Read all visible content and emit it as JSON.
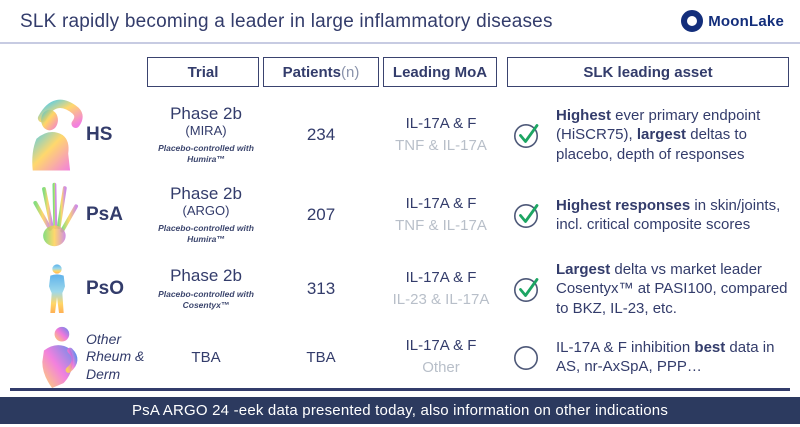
{
  "header": {
    "title": "SLK rapidly becoming a leader in large inflammatory diseases",
    "brand": "MoonLake"
  },
  "columns": {
    "trial": "Trial",
    "patients_rich": [
      {
        "t": "Patients ",
        "b": true
      },
      {
        "t": "(n)",
        "c": "muted-n"
      }
    ],
    "moa": "Leading MoA",
    "asset": "SLK leading asset"
  },
  "table": {
    "rows": [
      {
        "icon": "person-stretching-icon",
        "label": "HS",
        "trial_phase": "Phase 2b",
        "trial_name": "(MIRA)",
        "trial_note": "Placebo-controlled with Humira™",
        "patients": "234",
        "moa_primary": "IL-17A & F",
        "moa_secondary": "TNF & IL-17A",
        "checked": true,
        "asset_rich": [
          {
            "t": "Highest",
            "b": true
          },
          {
            "t": " ever primary endpoint (HiSCR75), "
          },
          {
            "t": "largest",
            "b": true
          },
          {
            "t": " deltas to placebo, depth of responses"
          }
        ]
      },
      {
        "icon": "hand-xray-icon",
        "label": "PsA",
        "trial_phase": "Phase 2b",
        "trial_name": "(ARGO)",
        "trial_note": "Placebo-controlled with Humira™",
        "patients": "207",
        "moa_primary": "IL-17A & F",
        "moa_secondary": "TNF & IL-17A",
        "checked": true,
        "asset_rich": [
          {
            "t": "Highest responses",
            "b": true
          },
          {
            "t": " in skin/joints, incl. critical composite scores"
          }
        ]
      },
      {
        "icon": "standing-figure-icon",
        "label": "PsO",
        "trial_phase": "Phase 2b",
        "trial_name": "",
        "trial_note": "Placebo-controlled with Cosentyx™",
        "patients": "313",
        "moa_primary": "IL-17A & F",
        "moa_secondary": "IL-23 & IL-17A",
        "checked": true,
        "asset_rich": [
          {
            "t": "Largest",
            "b": true
          },
          {
            "t": " delta vs market leader Cosentyx™ at PASI100, compared to BKZ, IL-23, etc."
          }
        ]
      },
      {
        "icon": "back-pain-figure-icon",
        "label": "Other Rheum & Derm",
        "trial_phase": "TBA",
        "trial_name": "",
        "trial_note": "",
        "patients": "TBA",
        "moa_primary": "IL-17A & F",
        "moa_secondary": "Other",
        "checked": false,
        "asset_rich": [
          {
            "t": "IL-17A & F inhibition "
          },
          {
            "t": "best",
            "b": true
          },
          {
            "t": " data in AS, nr-AxSpA, PPP…"
          }
        ]
      }
    ]
  },
  "footer": {
    "banner": "PsA ARGO 24 -eek data presented today, also information on other indications"
  },
  "colors": {
    "navy_text": "#333c6b",
    "brand_blue": "#132e7b",
    "muted_gray": "#b8bfc9",
    "check_green": "#1da563",
    "banner_bg": "#2c3a5f",
    "rule_light": "#c7cbe2"
  }
}
